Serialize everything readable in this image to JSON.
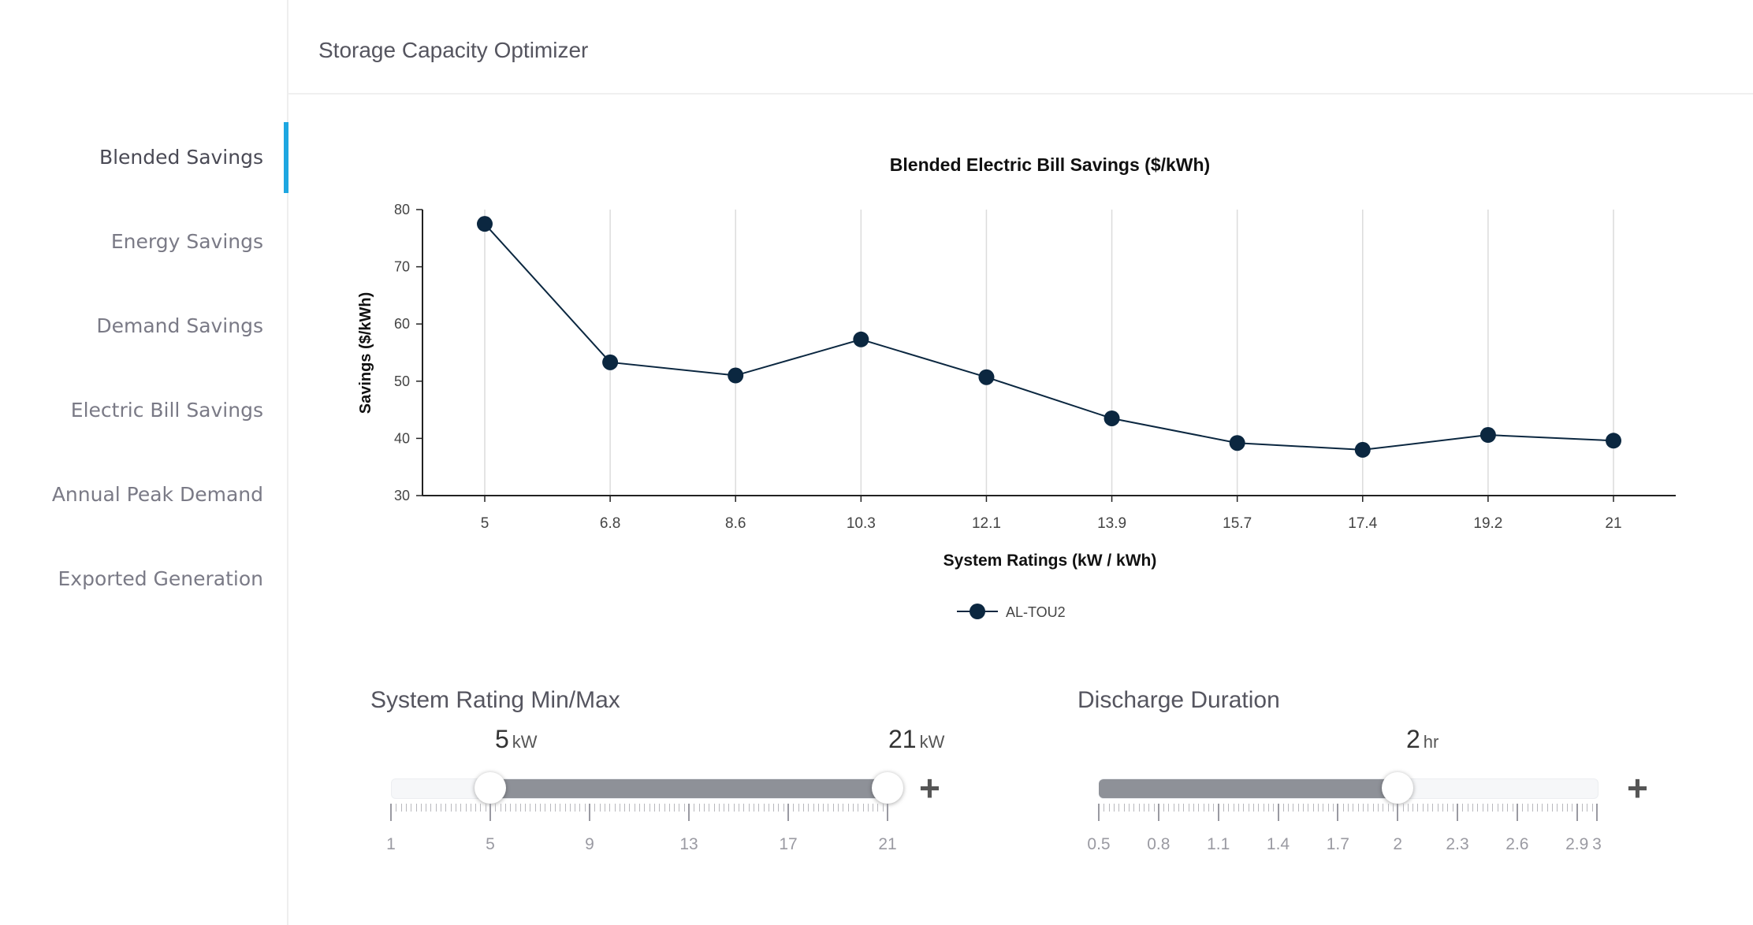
{
  "header": {
    "title": "Storage Capacity Optimizer"
  },
  "sidebar": {
    "items": [
      {
        "label": "Blended Savings",
        "active": true
      },
      {
        "label": "Energy Savings",
        "active": false
      },
      {
        "label": "Demand Savings",
        "active": false
      },
      {
        "label": "Electric Bill Savings",
        "active": false
      },
      {
        "label": "Annual Peak Demand",
        "active": false
      },
      {
        "label": "Exported Generation",
        "active": false
      }
    ],
    "accent_color": "#1ea7e1"
  },
  "chart_data": {
    "type": "line",
    "title": "Blended Electric Bill Savings ($/kWh)",
    "xlabel": "System Ratings (kW / kWh)",
    "ylabel": "Savings ($/kWh)",
    "categories": [
      "5",
      "6.8",
      "8.6",
      "10.3",
      "12.1",
      "13.9",
      "15.7",
      "17.4",
      "19.2",
      "21"
    ],
    "series": [
      {
        "name": "AL-TOU2",
        "color": "#0b2740",
        "values": [
          77.5,
          53.3,
          51,
          57.3,
          50.7,
          43.5,
          39.2,
          38,
          40.6,
          39.6
        ]
      }
    ],
    "ylim": [
      30,
      80
    ],
    "yticks": [
      30,
      40,
      50,
      60,
      70,
      80
    ],
    "grid": "vertical",
    "legend": "bottom-center"
  },
  "system_rating": {
    "title": "System Rating Min/Max",
    "min_value": "5",
    "max_value": "21",
    "unit": "kW",
    "range": [
      1,
      21
    ],
    "selected": [
      5,
      21
    ],
    "scale_labels": [
      "1",
      "5",
      "9",
      "13",
      "17",
      "21"
    ],
    "plus_label": "+"
  },
  "discharge": {
    "title": "Discharge Duration",
    "value": "2",
    "unit": "hr",
    "range": [
      0.5,
      3
    ],
    "selected": 2,
    "scale_labels": [
      "0.5",
      "0.8",
      "1.1",
      "1.4",
      "1.7",
      "2",
      "2.3",
      "2.6",
      "2.9",
      "3"
    ],
    "plus_label": "+"
  }
}
